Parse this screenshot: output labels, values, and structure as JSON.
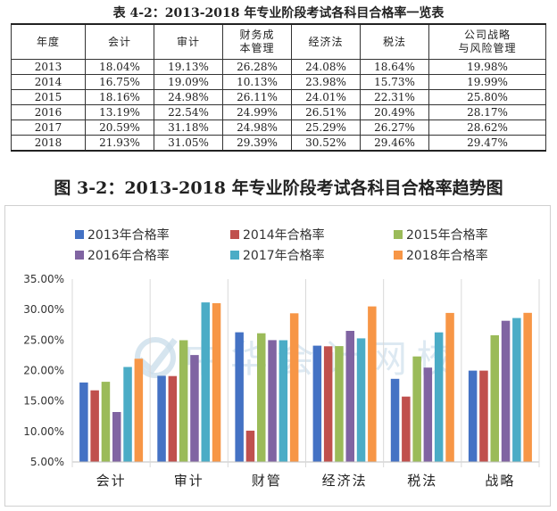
{
  "table": {
    "title": "表 4-2：2013-2018 年专业阶段考试各科目合格率一览表",
    "headers": [
      "年度",
      "会计",
      "审计",
      "财务成本管理",
      "经济法",
      "税法",
      "公司战略与风险管理"
    ],
    "header_lines": [
      [
        "年度"
      ],
      [
        "会计"
      ],
      [
        "审计"
      ],
      [
        "财务成",
        "本管理"
      ],
      [
        "经济法"
      ],
      [
        "税法"
      ],
      [
        "公司战略",
        "与风险管理"
      ]
    ],
    "rows": [
      [
        "2013",
        "18.04%",
        "19.13%",
        "26.28%",
        "24.08%",
        "18.64%",
        "19.98%"
      ],
      [
        "2014",
        "16.75%",
        "19.09%",
        "10.13%",
        "23.98%",
        "15.73%",
        "19.99%"
      ],
      [
        "2015",
        "18.16%",
        "24.98%",
        "26.11%",
        "24.01%",
        "22.31%",
        "25.80%"
      ],
      [
        "2016",
        "13.19%",
        "22.54%",
        "24.99%",
        "26.51%",
        "20.49%",
        "28.17%"
      ],
      [
        "2017",
        "20.59%",
        "31.18%",
        "24.98%",
        "25.29%",
        "26.27%",
        "28.62%"
      ],
      [
        "2018",
        "21.93%",
        "31.05%",
        "29.39%",
        "30.52%",
        "29.46%",
        "29.47%"
      ]
    ]
  },
  "watermark": "中华会计网校",
  "chart_data": {
    "type": "bar",
    "title": "图 3-2：2013-2018 年专业阶段考试各科目合格率趋势图",
    "categories": [
      "会计",
      "审计",
      "财管",
      "经济法",
      "税法",
      "战略"
    ],
    "series": [
      {
        "name": "2013年合格率",
        "color": "#4472c4",
        "values": [
          18.04,
          19.13,
          26.28,
          24.08,
          18.64,
          19.98
        ]
      },
      {
        "name": "2014年合格率",
        "color": "#c0504d",
        "values": [
          16.75,
          19.09,
          10.13,
          23.98,
          15.73,
          19.99
        ]
      },
      {
        "name": "2015年合格率",
        "color": "#9bbb59",
        "values": [
          18.16,
          24.98,
          26.11,
          24.01,
          22.31,
          25.8
        ]
      },
      {
        "name": "2016年合格率",
        "color": "#8064a2",
        "values": [
          13.19,
          22.54,
          24.99,
          26.51,
          20.49,
          28.17
        ]
      },
      {
        "name": "2017年合格率",
        "color": "#4bacc6",
        "values": [
          20.59,
          31.18,
          24.98,
          25.29,
          26.27,
          28.62
        ]
      },
      {
        "name": "2018年合格率",
        "color": "#f79646",
        "values": [
          21.93,
          31.05,
          29.39,
          30.52,
          29.46,
          29.47
        ]
      }
    ],
    "yticks": [
      "5.00%",
      "10.00%",
      "15.00%",
      "20.00%",
      "25.00%",
      "30.00%",
      "35.00%"
    ],
    "ylim": [
      5,
      35
    ],
    "legend_position": "top",
    "grid": false
  }
}
